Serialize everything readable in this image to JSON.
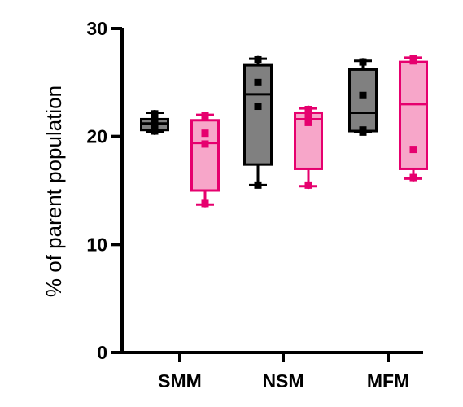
{
  "chart_data": {
    "type": "box",
    "title": "",
    "xlabel": "",
    "ylabel": "% of parent population",
    "ylim": [
      0,
      30
    ],
    "yticks": [
      0,
      10,
      20,
      30
    ],
    "categories": [
      "SMM",
      "NSM",
      "MFM"
    ],
    "series": [
      {
        "color": "#000000",
        "fill": "#808080",
        "marker": "square",
        "boxes": [
          {
            "min": 20.4,
            "q1": 20.6,
            "median": 21.2,
            "q3": 21.6,
            "max": 22.2,
            "points": [
              20.5,
              20.9,
              21.6,
              22.1
            ]
          },
          {
            "min": 15.5,
            "q1": 17.4,
            "median": 23.9,
            "q3": 26.6,
            "max": 27.2,
            "points": [
              15.5,
              22.8,
              25.0,
              27.1
            ]
          },
          {
            "min": 20.4,
            "q1": 20.5,
            "median": 22.2,
            "q3": 26.2,
            "max": 27.0,
            "points": [
              20.4,
              20.6,
              23.8,
              26.9
            ]
          }
        ]
      },
      {
        "color": "#e6006e",
        "fill": "#f7a6c9",
        "marker": "square",
        "boxes": [
          {
            "min": 13.7,
            "q1": 15.0,
            "median": 19.4,
            "q3": 21.5,
            "max": 22.0,
            "points": [
              13.8,
              19.3,
              20.3,
              21.9
            ]
          },
          {
            "min": 15.4,
            "q1": 17.0,
            "median": 21.6,
            "q3": 22.2,
            "max": 22.6,
            "points": [
              15.5,
              21.3,
              21.9,
              22.5
            ]
          },
          {
            "min": 16.1,
            "q1": 17.0,
            "median": 23.0,
            "q3": 26.9,
            "max": 27.3,
            "points": [
              16.2,
              18.8,
              27.0,
              27.2
            ]
          }
        ]
      }
    ]
  }
}
